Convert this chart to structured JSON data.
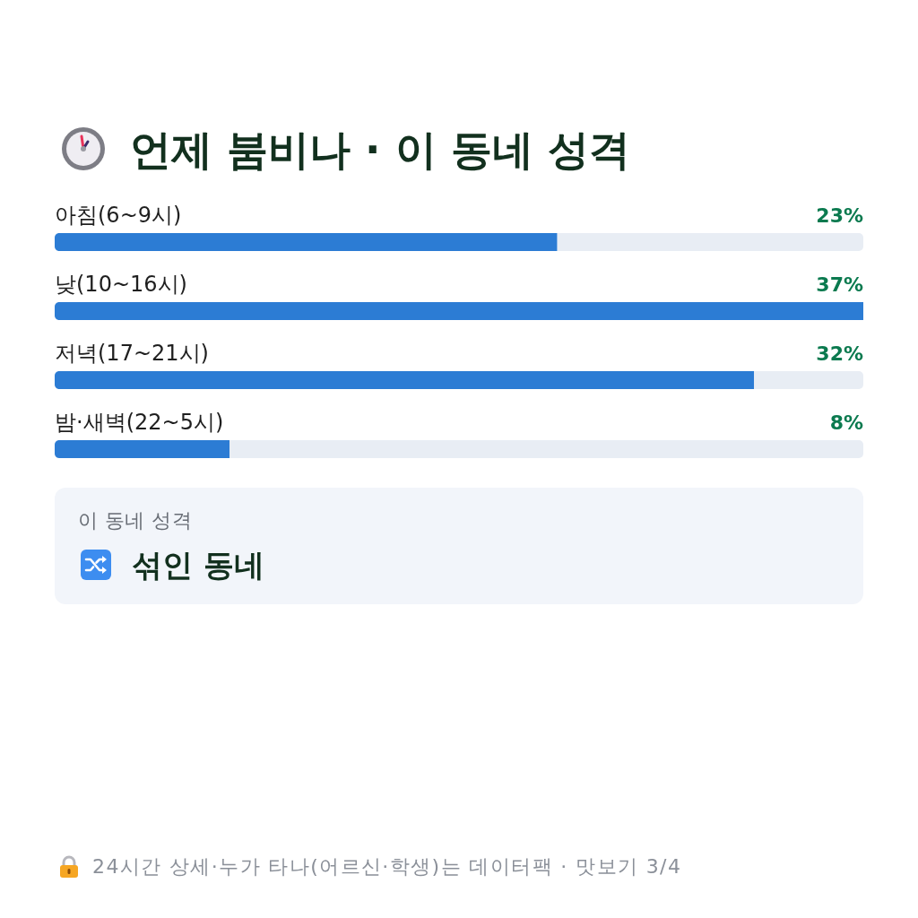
{
  "chart_data": [
    {
      "type": "bar",
      "orientation": "horizontal",
      "title": "언제 붐비나 · 이 동네 성격",
      "categories": [
        "아침(6~9시)",
        "낮(10~16시)",
        "저녁(17~21시)",
        "밤·새벽(22~5시)"
      ],
      "values": [
        23,
        37,
        32,
        8
      ],
      "color": "#2c7cd4",
      "value_labels": [
        "23%",
        "37%",
        "32%",
        "8%"
      ],
      "annotations": [
        "24시간 상세·누가 타나(어르신·학생)는 데이터팩 · 맛보기 3/4"
      ]
    },
    {
      "type": "other",
      "title": "이 동네 성격",
      "annotations": [
        "섞인 동네"
      ]
    }
  ]
}
